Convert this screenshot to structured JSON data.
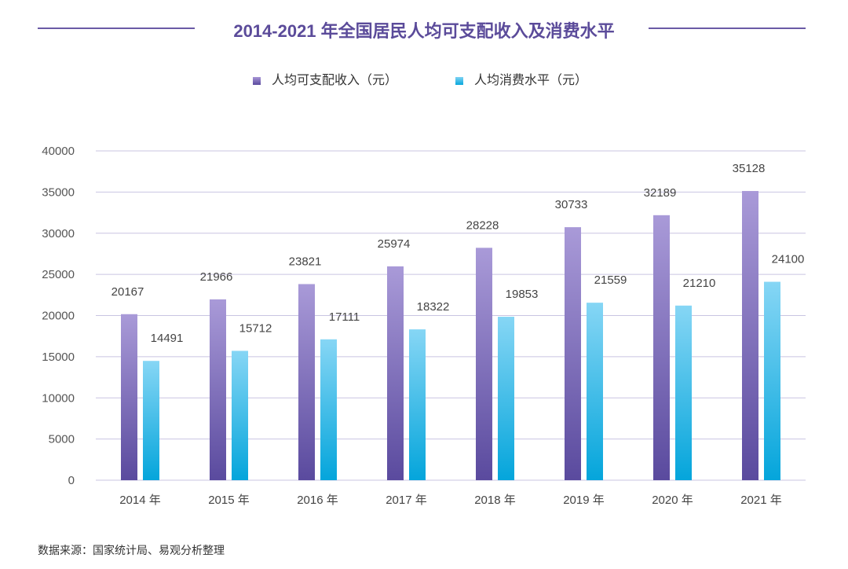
{
  "title": "2014-2021 年全国居民人均可支配收入及消费水平",
  "source": "数据来源：国家统计局、易观分析整理",
  "chart_data": {
    "type": "bar",
    "title": "2014-2021 年全国居民人均可支配收入及消费水平",
    "categories": [
      "2014 年",
      "2015 年",
      "2016 年",
      "2017 年",
      "2018 年",
      "2019 年",
      "2020 年",
      "2021 年"
    ],
    "series": [
      {
        "name": "人均可支配收入（元）",
        "color": "#6a5aa6",
        "values": [
          20167,
          21966,
          23821,
          25974,
          28228,
          30733,
          32189,
          35128
        ]
      },
      {
        "name": "人均消费水平（元）",
        "color": "#22b3e6",
        "values": [
          14491,
          15712,
          17111,
          18322,
          19853,
          21559,
          21210,
          24100
        ]
      }
    ],
    "yticks": [
      "0",
      "5000",
      "10000",
      "15000",
      "20000",
      "25000",
      "30000",
      "35000",
      "40000"
    ],
    "ylim": [
      0,
      40000
    ],
    "legend": "top-center",
    "grid": true
  }
}
